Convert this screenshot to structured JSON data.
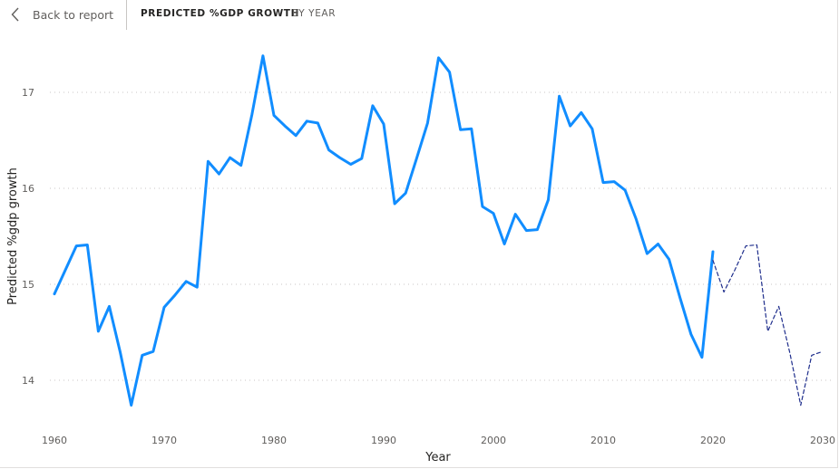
{
  "header": {
    "back_label": "Back to report",
    "title": "PREDICTED %GDP GROWTH",
    "subtitle": "BY YEAR",
    "back_icon": "chevron-left-icon"
  },
  "chart_data": {
    "type": "line",
    "xlabel": "Year",
    "ylabel": "Predicted %gdp growth",
    "xlim": [
      1960,
      2030
    ],
    "ylim": [
      13.7,
      17.6
    ],
    "x_ticks": [
      "1960",
      "1970",
      "1980",
      "1990",
      "2000",
      "2010",
      "2020",
      "2030"
    ],
    "y_ticks": [
      "14",
      "15",
      "16",
      "17"
    ],
    "grid": "horizontal dotted",
    "series": [
      {
        "style": "solid",
        "color": "#118DFF",
        "x": [
          1960,
          1961,
          1962,
          1963,
          1964,
          1965,
          1966,
          1967,
          1968,
          1969,
          1970,
          1971,
          1972,
          1973,
          1974,
          1975,
          1976,
          1977,
          1978,
          1979,
          1980,
          1981,
          1982,
          1983,
          1984,
          1985,
          1986,
          1987,
          1988,
          1989,
          1990,
          1991,
          1992,
          1993,
          1994,
          1995,
          1996,
          1997,
          1998,
          1999,
          2000,
          2001,
          2002,
          2003,
          2004,
          2005,
          2006,
          2007,
          2008,
          2009,
          2010,
          2011,
          2012,
          2013,
          2014,
          2015,
          2016,
          2017,
          2018,
          2019,
          2020
        ],
        "values": [
          14.9,
          15.15,
          15.4,
          15.41,
          14.51,
          14.77,
          14.29,
          13.74,
          14.26,
          14.3,
          14.76,
          14.89,
          15.03,
          14.97,
          16.28,
          16.15,
          16.32,
          16.24,
          16.77,
          17.38,
          16.76,
          16.65,
          16.55,
          16.7,
          16.68,
          16.4,
          16.32,
          16.25,
          16.31,
          16.86,
          16.67,
          15.84,
          15.95,
          16.31,
          16.68,
          17.36,
          17.21,
          16.61,
          16.62,
          15.81,
          15.74,
          15.42,
          15.73,
          15.56,
          15.57,
          15.88,
          16.96,
          16.65,
          16.79,
          16.62,
          16.06,
          16.07,
          15.98,
          15.68,
          15.32,
          15.42,
          15.26,
          14.86,
          14.48,
          14.24,
          15.34
        ]
      },
      {
        "style": "dashed",
        "color": "#1F2E8C",
        "x": [
          2020,
          2021,
          2022,
          2023,
          2024,
          2025,
          2026,
          2027,
          2028,
          2029,
          2030
        ],
        "values": [
          15.25,
          14.92,
          15.15,
          15.4,
          15.41,
          14.51,
          14.77,
          14.29,
          13.74,
          14.26,
          14.3
        ]
      }
    ]
  }
}
